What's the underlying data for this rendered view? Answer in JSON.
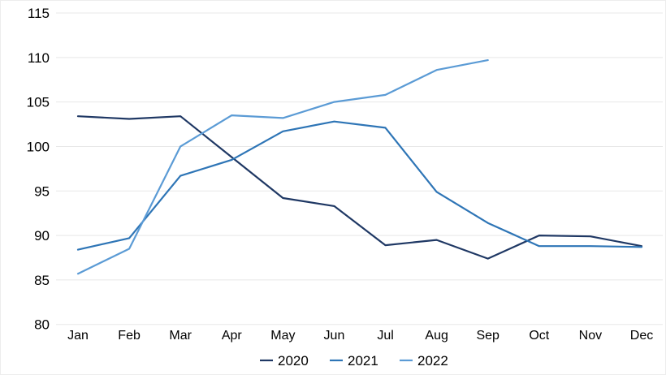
{
  "chart_data": {
    "type": "line",
    "title": "",
    "xlabel": "",
    "ylabel": "",
    "ylim": [
      80,
      115
    ],
    "yticks": [
      80,
      85,
      90,
      95,
      100,
      105,
      110,
      115
    ],
    "grid": "horizontal",
    "legend_position": "bottom-center",
    "categories": [
      "Jan",
      "Feb",
      "Mar",
      "Apr",
      "May",
      "Jun",
      "Jul",
      "Aug",
      "Sep",
      "Oct",
      "Nov",
      "Dec"
    ],
    "series": [
      {
        "name": "2020",
        "color": "#1f3864",
        "values": [
          103.4,
          103.1,
          103.4,
          98.8,
          94.2,
          93.3,
          88.9,
          89.5,
          87.4,
          90.0,
          89.9,
          88.8
        ]
      },
      {
        "name": "2021",
        "color": "#2e75b6",
        "values": [
          88.4,
          89.7,
          96.7,
          98.5,
          101.7,
          102.8,
          102.1,
          94.9,
          91.4,
          88.8,
          88.8,
          88.7
        ]
      },
      {
        "name": "2022",
        "color": "#5b9bd5",
        "values": [
          85.7,
          88.5,
          100.0,
          103.5,
          103.2,
          105.0,
          105.8,
          108.6,
          109.7
        ]
      }
    ],
    "colors": {
      "gridline": "#e8e8e8",
      "background": "#ffffff",
      "text": "#000000"
    }
  }
}
